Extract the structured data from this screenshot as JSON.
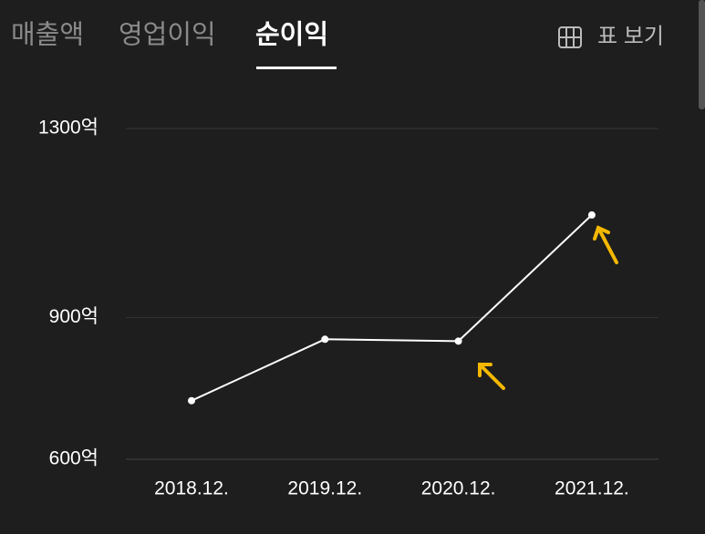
{
  "tabs": [
    "매출액",
    "영업이익",
    "순이익"
  ],
  "view_table": "표 보기",
  "chart_data": {
    "type": "line",
    "categories": [
      "2018.12.",
      "2019.12.",
      "2020.12.",
      "2021.12."
    ],
    "values": [
      724,
      854,
      850,
      1117
    ],
    "color": "#ffffff",
    "ylim": [
      600,
      1300
    ],
    "yticks": [
      {
        "value": 600,
        "label": "600억"
      },
      {
        "value": 900,
        "label": "900억"
      },
      {
        "value": 1300,
        "label": "1300억"
      }
    ],
    "grid": true
  }
}
